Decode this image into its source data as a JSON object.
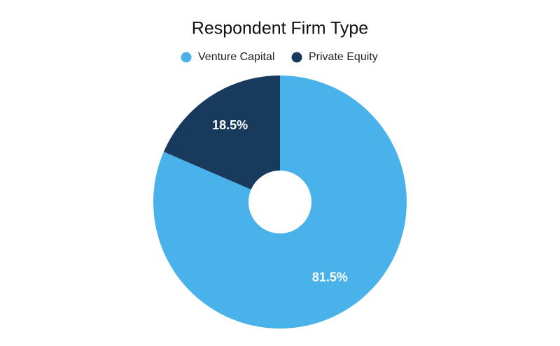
{
  "chart_data": {
    "type": "donut",
    "title": "Respondent Firm Type",
    "categories": [
      "Venture Capital",
      "Private Equity"
    ],
    "values": [
      81.5,
      18.5
    ],
    "value_labels": [
      "81.5%",
      "18.5%"
    ],
    "colors": [
      "#4ab2ea",
      "#173a5d"
    ],
    "legend": "top"
  }
}
